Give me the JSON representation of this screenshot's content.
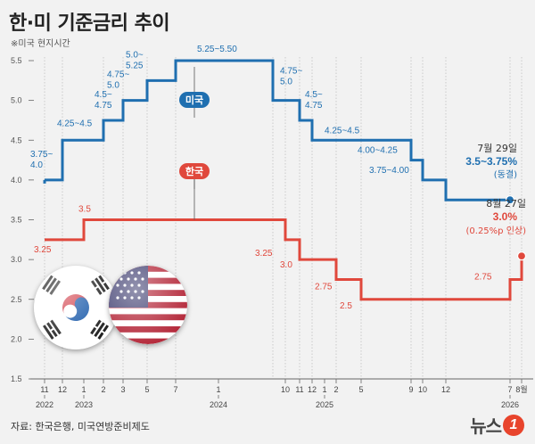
{
  "title": "한·미 기준금리 추이",
  "subtitle": "※미국 현지시간",
  "source": "자료: 한국은행, 미국연방준비제도",
  "logo": {
    "text": "뉴스",
    "badge": "1"
  },
  "colors": {
    "us": "#1f6fb0",
    "kr": "#e0483c",
    "grid": "#b8b8b8",
    "axis": "#666666"
  },
  "flags": [
    {
      "name": "south-korea-flag-icon"
    },
    {
      "name": "usa-flag-icon"
    }
  ],
  "chart_data": {
    "type": "line",
    "step": true,
    "ylim": [
      1.5,
      5.5
    ],
    "yticks": [
      "1.5",
      "2.0",
      "2.5",
      "3.0",
      "3.5",
      "4.0",
      "4.5",
      "5.0",
      "5.5"
    ],
    "x_month_ticks": [
      "11",
      "12",
      "1",
      "2",
      "3",
      "5",
      "7",
      "1",
      "10",
      "11",
      "12",
      "1",
      "2",
      "5",
      "9",
      "10",
      "12",
      "7",
      "8월"
    ],
    "x_year_labels": [
      "2022",
      "2023",
      "2024",
      "2025",
      "2026"
    ],
    "series": [
      {
        "name": "미국",
        "points": [
          {
            "x": "2022-11",
            "y": 4.0,
            "label": "3.75~\n4.0"
          },
          {
            "x": "2022-12",
            "y": 4.5,
            "label": "4.25~4.5"
          },
          {
            "x": "2023-02",
            "y": 4.75,
            "label": "4.5~\n4.75"
          },
          {
            "x": "2023-03",
            "y": 5.0,
            "label": "4.75~\n5.0"
          },
          {
            "x": "2023-05",
            "y": 5.25,
            "label": "5.0~\n5.25"
          },
          {
            "x": "2023-07",
            "y": 5.5,
            "label": "5.25~5.50"
          },
          {
            "x": "2024-09",
            "y": 5.0,
            "label": "4.75~\n5.0"
          },
          {
            "x": "2024-11",
            "y": 4.75,
            "label": "4.5~\n4.75"
          },
          {
            "x": "2024-12",
            "y": 4.5,
            "label": "4.25~4.5"
          },
          {
            "x": "2025-09",
            "y": 4.25,
            "label": "4.00~4.25"
          },
          {
            "x": "2025-10",
            "y": 4.0,
            "label": "3.75~4.00"
          },
          {
            "x": "2025-12",
            "y": 3.75,
            "label": ""
          },
          {
            "x": "2026-07",
            "y": 3.75,
            "label": ""
          }
        ]
      },
      {
        "name": "한국",
        "points": [
          {
            "x": "2022-11",
            "y": 3.25,
            "label": "3.25"
          },
          {
            "x": "2023-01",
            "y": 3.5,
            "label": "3.5"
          },
          {
            "x": "2024-10",
            "y": 3.25,
            "label": "3.25"
          },
          {
            "x": "2024-11",
            "y": 3.0,
            "label": "3.0"
          },
          {
            "x": "2025-02",
            "y": 2.75,
            "label": "2.75"
          },
          {
            "x": "2025-05",
            "y": 2.5,
            "label": "2.5"
          },
          {
            "x": "2026-07",
            "y": 2.75,
            "label": "2.75"
          },
          {
            "x": "2026-08",
            "y": 3.0,
            "label": ""
          }
        ]
      }
    ],
    "annotations": {
      "us": {
        "date": "7월 29일",
        "value": "3.5~3.75%",
        "note": "(동결)"
      },
      "kr": {
        "date": "8월 27일",
        "value": "3.0%",
        "note": "(0.25%p 인상)"
      }
    }
  }
}
